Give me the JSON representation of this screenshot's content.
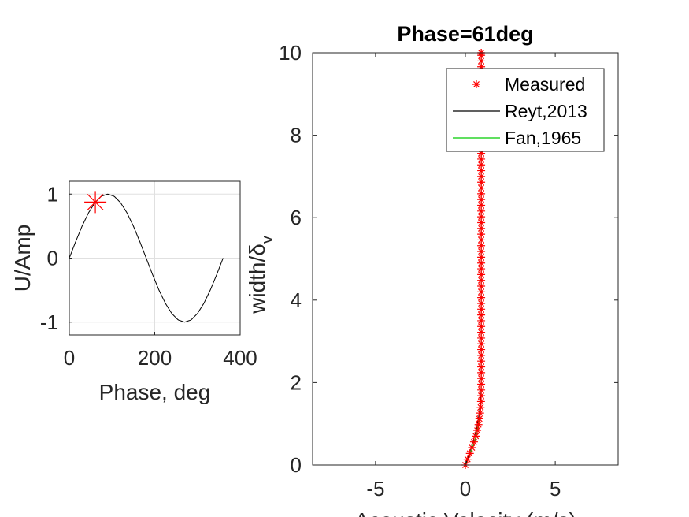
{
  "chart_data": [
    {
      "type": "line",
      "title": "",
      "xlabel": "Phase, deg",
      "ylabel": "U/Amp",
      "xlim": [
        0,
        400
      ],
      "ylim": [
        -1.2,
        1.2
      ],
      "x_ticks": [
        0,
        200,
        400
      ],
      "x_tick_labels": [
        "0",
        "200",
        "400"
      ],
      "y_ticks": [
        -1,
        0,
        1
      ],
      "y_tick_labels": [
        "-1",
        "0",
        "1"
      ],
      "grid": true,
      "series": [
        {
          "color": "#000000",
          "x": [
            0,
            15,
            30,
            45,
            60,
            75,
            90,
            105,
            120,
            135,
            150,
            165,
            180,
            195,
            210,
            225,
            240,
            255,
            270,
            285,
            300,
            315,
            330,
            345,
            360
          ],
          "y": [
            0,
            0.259,
            0.5,
            0.707,
            0.866,
            0.966,
            1,
            0.966,
            0.866,
            0.707,
            0.5,
            0.259,
            0,
            -0.259,
            -0.5,
            -0.707,
            -0.866,
            -0.966,
            -1,
            -0.966,
            -0.866,
            -0.707,
            -0.5,
            -0.259,
            0
          ]
        },
        {
          "color": "#ff0000",
          "marker": "star",
          "x": [
            61
          ],
          "y": [
            0.875
          ]
        }
      ]
    },
    {
      "type": "line",
      "title": "Phase=61deg",
      "xlabel": "Acoustic Velocity (m/s)",
      "ylabel_main": "width/δ",
      "ylabel_sub": "v",
      "xlim": [
        -8.5,
        8.5
      ],
      "ylim": [
        0,
        10
      ],
      "x_ticks": [
        -5,
        0,
        5
      ],
      "x_tick_labels": [
        "-5",
        "0",
        "5"
      ],
      "y_ticks": [
        0,
        2,
        4,
        6,
        8,
        10
      ],
      "y_tick_labels": [
        "0",
        "2",
        "4",
        "6",
        "8",
        "10"
      ],
      "grid": false,
      "legend_position": "top-right",
      "series": [
        {
          "name": "Measured",
          "color": "#ff0000",
          "marker": "star",
          "x": [
            0.0,
            0.12,
            0.25,
            0.37,
            0.48,
            0.58,
            0.66,
            0.73,
            0.78,
            0.82,
            0.85,
            0.87,
            0.88,
            0.88,
            0.88,
            0.88,
            0.88,
            0.88,
            0.88,
            0.88,
            0.88,
            0.88,
            0.88,
            0.88,
            0.88,
            0.88,
            0.88,
            0.88,
            0.88,
            0.88,
            0.88,
            0.88,
            0.88,
            0.88,
            0.88,
            0.88,
            0.88,
            0.88,
            0.88,
            0.88,
            0.88,
            0.88,
            0.88,
            0.88,
            0.88,
            0.88,
            0.88,
            0.88,
            0.88,
            0.88,
            0.88,
            0.88,
            0.88,
            0.88,
            0.88,
            0.88,
            0.88,
            0.88,
            0.88,
            0.88,
            0.88,
            0.88,
            0.88,
            0.88,
            0.88,
            0.88,
            0.88,
            0.88,
            0.88,
            0.88,
            0.88,
            0.88,
            0.88,
            0.88
          ],
          "y": [
            0.0,
            0.14,
            0.28,
            0.42,
            0.56,
            0.7,
            0.84,
            0.98,
            1.12,
            1.26,
            1.4,
            1.54,
            1.68,
            1.82,
            1.96,
            2.1,
            2.24,
            2.38,
            2.52,
            2.66,
            2.8,
            2.94,
            3.08,
            3.22,
            3.36,
            3.5,
            3.64,
            3.78,
            3.92,
            4.06,
            4.2,
            4.34,
            4.48,
            4.62,
            4.76,
            4.9,
            5.04,
            5.18,
            5.32,
            5.46,
            5.6,
            5.74,
            5.88,
            6.02,
            6.16,
            6.3,
            6.44,
            6.58,
            6.72,
            6.86,
            7.0,
            7.14,
            7.28,
            7.42,
            7.56,
            7.7,
            7.84,
            7.98,
            8.12,
            8.26,
            8.4,
            8.54,
            8.68,
            8.82,
            8.96,
            9.1,
            9.24,
            9.38,
            9.52,
            9.66,
            9.8,
            9.94,
            10.0,
            10.0
          ]
        },
        {
          "name": "Reyt,2013",
          "color": "#000000",
          "x": [
            0.0,
            0.16,
            0.31,
            0.45,
            0.57,
            0.67,
            0.75,
            0.81,
            0.85,
            0.87,
            0.88,
            0.88,
            0.88,
            0.88,
            0.88
          ],
          "y": [
            0.0,
            0.2,
            0.4,
            0.6,
            0.8,
            1.0,
            1.2,
            1.4,
            1.6,
            1.8,
            2.0,
            2.5,
            4.0,
            7.0,
            10.0
          ]
        },
        {
          "name": "Fan,1965",
          "color": "#00cc00",
          "x": [
            0.0,
            0.2,
            0.38,
            0.53,
            0.65,
            0.74,
            0.8,
            0.84,
            0.87,
            0.88,
            0.88,
            0.88,
            0.88,
            0.88
          ],
          "y": [
            0.0,
            0.2,
            0.4,
            0.6,
            0.8,
            1.0,
            1.2,
            1.4,
            1.6,
            1.8,
            2.2,
            4.0,
            7.0,
            10.0
          ]
        }
      ]
    }
  ]
}
